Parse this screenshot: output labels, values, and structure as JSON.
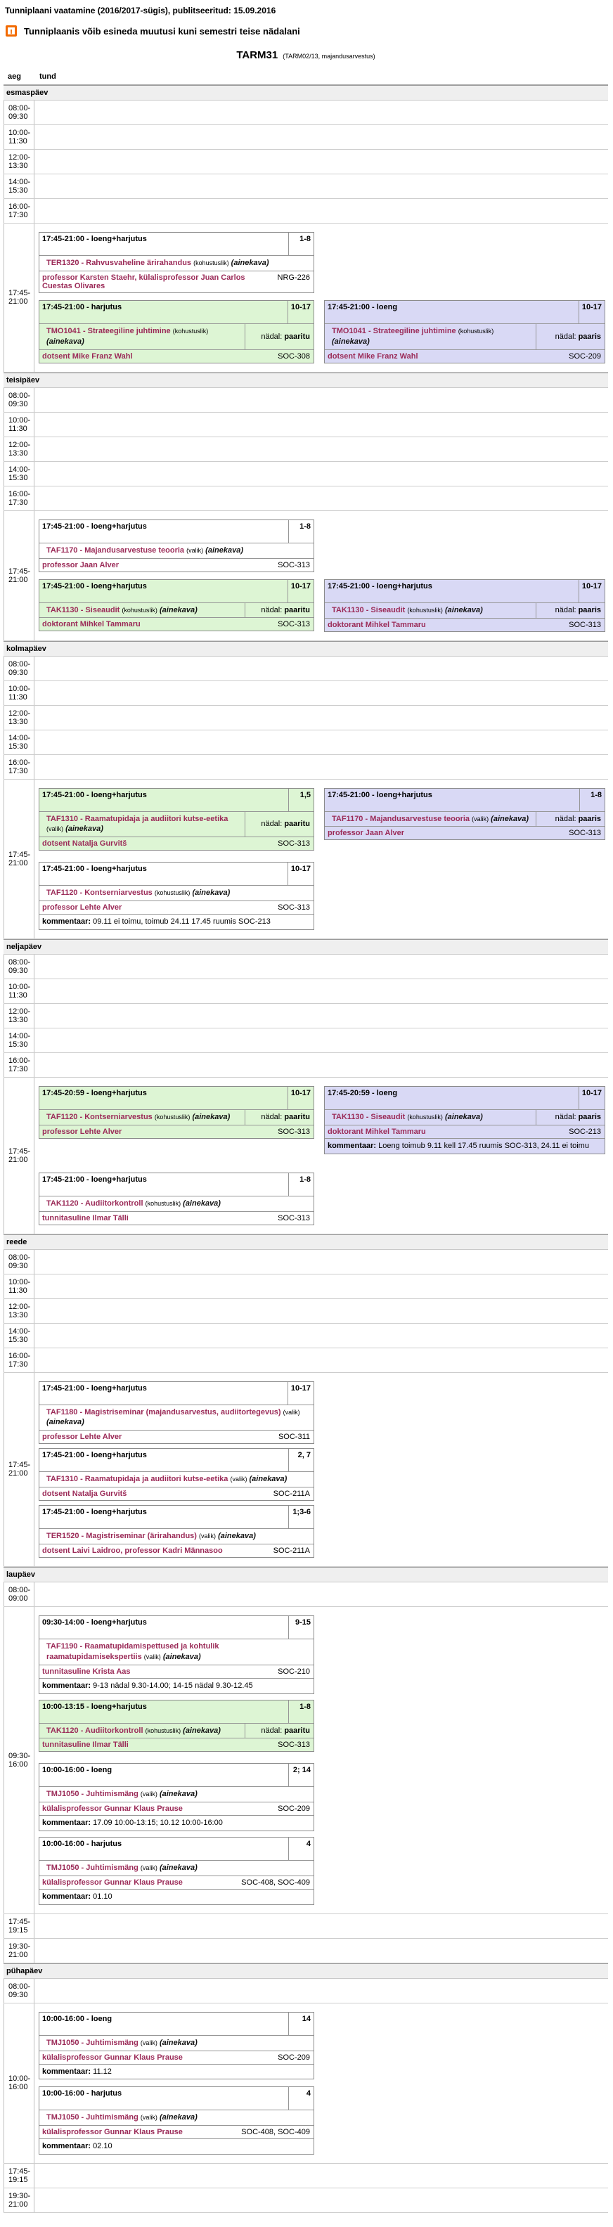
{
  "header": {
    "title": "Tunniplaani vaatamine (2016/2017-sügis), publitseeritud: 15.09.2016",
    "warning_icon": "exclamation-mark",
    "notice": "Tunniplaanis võib esineda muutusi kuni semestri teise nädalani",
    "group_code": "TARM31",
    "group_detail": "(TARM02/13, majandusarvestus)"
  },
  "table": {
    "col_headers": [
      "aeg",
      "tund"
    ],
    "labels": {
      "week_label": "nädal:",
      "comment_label": "kommentaar:",
      "ainekava": "(ainekava)"
    },
    "colors": {
      "odd_week_bg": "#ddf5d4",
      "even_week_bg": "#d9d9f5",
      "link": "#9b2b58",
      "warning": "#f26a00"
    },
    "days": [
      {
        "name": "esmaspäev",
        "rows": [
          {
            "time": "08:00-\n09:30"
          },
          {
            "time": "10:00-\n11:30"
          },
          {
            "time": "12:00-\n13:30"
          },
          {
            "time": "14:00-\n15:30"
          },
          {
            "time": "16:00-\n17:30"
          },
          {
            "time": "17:45-\n21:00",
            "columns": {
              "right_align_with": 1,
              "left": [
                {
                  "time": "17:45-21:00",
                  "type": "loeng+harjutus",
                  "weeks": "1-8",
                  "color": "white",
                  "course": "TER1320 - Rahvusvaheline ärirahandus",
                  "requirement": "(kohustuslik)",
                  "persons": "professor Karsten Staehr,  külalisprofessor Juan Carlos Cuestas Olivares",
                  "room": "NRG-226"
                },
                {
                  "time": "17:45-21:00",
                  "type": "harjutus",
                  "weeks": "10-17",
                  "color": "green",
                  "course": "TMO1041 - Strateegiline juhtimine",
                  "requirement": "(kohustuslik)",
                  "week_parity": "paaritu",
                  "persons": "dotsent Mike Franz Wahl",
                  "room": "SOC-308"
                }
              ],
              "right": [
                {
                  "time": "17:45-21:00",
                  "type": "loeng",
                  "weeks": "10-17",
                  "color": "purple",
                  "course": "TMO1041 - Strateegiline juhtimine",
                  "requirement": "(kohustuslik)",
                  "week_parity": "paaris",
                  "persons": "dotsent Mike Franz Wahl",
                  "room": "SOC-209"
                }
              ]
            }
          }
        ]
      },
      {
        "name": "teisipäev",
        "rows": [
          {
            "time": "08:00-\n09:30"
          },
          {
            "time": "10:00-\n11:30"
          },
          {
            "time": "12:00-\n13:30"
          },
          {
            "time": "14:00-\n15:30"
          },
          {
            "time": "16:00-\n17:30"
          },
          {
            "time": "17:45-\n21:00",
            "columns": {
              "right_align_with": 1,
              "left": [
                {
                  "time": "17:45-21:00",
                  "type": "loeng+harjutus",
                  "weeks": "1-8",
                  "color": "white",
                  "course": "TAF1170 - Majandusarvestuse teooria",
                  "requirement": "(valik)",
                  "persons": "professor Jaan Alver",
                  "room": "SOC-313"
                },
                {
                  "time": "17:45-21:00",
                  "type": "loeng+harjutus",
                  "weeks": "10-17",
                  "color": "green",
                  "course": "TAK1130 - Siseaudit",
                  "requirement": "(kohustuslik)",
                  "week_parity": "paaritu",
                  "persons": "doktorant Mihkel Tammaru",
                  "room": "SOC-313"
                }
              ],
              "right": [
                {
                  "time": "17:45-21:00",
                  "type": "loeng+harjutus",
                  "weeks": "10-17",
                  "color": "purple",
                  "course": "TAK1130 - Siseaudit",
                  "requirement": "(kohustuslik)",
                  "week_parity": "paaris",
                  "persons": "doktorant Mihkel Tammaru",
                  "room": "SOC-313"
                }
              ]
            }
          }
        ]
      },
      {
        "name": "kolmapäev",
        "rows": [
          {
            "time": "08:00-\n09:30"
          },
          {
            "time": "10:00-\n11:30"
          },
          {
            "time": "12:00-\n13:30"
          },
          {
            "time": "14:00-\n15:30"
          },
          {
            "time": "16:00-\n17:30"
          },
          {
            "time": "17:45-\n21:00",
            "columns": {
              "right_align_with": 0,
              "left": [
                {
                  "time": "17:45-21:00",
                  "type": "loeng+harjutus",
                  "weeks": "1,5",
                  "color": "green",
                  "course": "TAF1310 - Raamatupidaja ja audiitori kutse-eetika",
                  "requirement": "(valik)",
                  "week_parity": "paaritu",
                  "persons": "dotsent Natalja Gurvitš",
                  "room": "SOC-313"
                },
                {
                  "time": "17:45-21:00",
                  "type": "loeng+harjutus",
                  "weeks": "10-17",
                  "color": "white",
                  "gap_above": 16,
                  "course": "TAF1120 - Kontserniarvestus",
                  "requirement": "(kohustuslik)",
                  "persons": "professor Lehte Alver",
                  "room": "SOC-313",
                  "comment": "09.11 ei toimu, toimub 24.11 17.45 ruumis SOC-213"
                }
              ],
              "right": [
                {
                  "time": "17:45-21:00",
                  "type": "loeng+harjutus",
                  "weeks": "1-8",
                  "color": "purple",
                  "course": "TAF1170 - Majandusarvestuse teooria",
                  "requirement": "(valik)",
                  "week_parity": "paaris",
                  "persons": "professor Jaan Alver",
                  "room": "SOC-313"
                }
              ]
            }
          }
        ]
      },
      {
        "name": "neljapäev",
        "rows": [
          {
            "time": "08:00-\n09:30"
          },
          {
            "time": "10:00-\n11:30"
          },
          {
            "time": "12:00-\n13:30"
          },
          {
            "time": "14:00-\n15:30"
          },
          {
            "time": "16:00-\n17:30"
          },
          {
            "time": "17:45-\n21:00",
            "columns": {
              "right_align_with": 0,
              "left": [
                {
                  "time": "17:45-20:59",
                  "type": "loeng+harjutus",
                  "weeks": "10-17",
                  "color": "green",
                  "course": "TAF1120 - Kontserniarvestus",
                  "requirement": "(kohustuslik)",
                  "week_parity": "paaritu",
                  "persons": "professor Lehte Alver",
                  "room": "SOC-313"
                },
                {
                  "time": "17:45-21:00",
                  "type": "loeng+harjutus",
                  "weeks": "1-8",
                  "color": "white",
                  "gap_above": 48,
                  "course": "TAK1120 - Audiitorkontroll",
                  "requirement": "(kohustuslik)",
                  "persons": "tunnitasuline Ilmar Tälli",
                  "room": "SOC-313"
                }
              ],
              "right": [
                {
                  "time": "17:45-20:59",
                  "type": "loeng",
                  "weeks": "10-17",
                  "color": "purple",
                  "course": "TAK1130 - Siseaudit",
                  "requirement": "(kohustuslik)",
                  "week_parity": "paaris",
                  "persons": "doktorant Mihkel Tammaru",
                  "room": "SOC-213",
                  "comment": "Loeng toimub 9.11 kell 17.45 ruumis SOC-313, 24.11 ei toimu"
                }
              ]
            }
          }
        ]
      },
      {
        "name": "reede",
        "rows": [
          {
            "time": "08:00-\n09:30"
          },
          {
            "time": "10:00-\n11:30"
          },
          {
            "time": "12:00-\n13:30"
          },
          {
            "time": "14:00-\n15:30"
          },
          {
            "time": "16:00-\n17:30"
          },
          {
            "time": "17:45-\n21:00",
            "columns": {
              "left": [
                {
                  "time": "17:45-21:00",
                  "type": "loeng+harjutus",
                  "weeks": "10-17",
                  "color": "white",
                  "course": "TAF1180 - Magistriseminar (majandusarvestus, audiitortegevus)",
                  "requirement": "(valik)",
                  "persons": "professor Lehte Alver",
                  "room": "SOC-311"
                },
                {
                  "time": "17:45-21:00",
                  "type": "loeng+harjutus",
                  "weeks": "2, 7",
                  "color": "white",
                  "gap_above": 6,
                  "course": "TAF1310 - Raamatupidaja ja audiitori kutse-eetika",
                  "requirement": "(valik)",
                  "persons": "dotsent Natalja Gurvitš",
                  "room": "SOC-211A"
                },
                {
                  "time": "17:45-21:00",
                  "type": "loeng+harjutus",
                  "weeks": "1;3-6",
                  "color": "white",
                  "gap_above": 6,
                  "course": "TER1520 - Magistriseminar (ärirahandus)",
                  "requirement": "(valik)",
                  "persons": "dotsent Laivi Laidroo,  professor Kadri Männasoo",
                  "room": "SOC-211A"
                }
              ]
            }
          }
        ]
      },
      {
        "name": "laupäev",
        "rows": [
          {
            "time": "08:00-\n09:00"
          },
          {
            "time": "09:30-\n16:00",
            "columns": {
              "left": [
                {
                  "time": "09:30-14:00",
                  "type": "loeng+harjutus",
                  "weeks": "9-15",
                  "color": "white",
                  "course": "TAF1190 - Raamatupidamispettused ja kohtulik raamatupidamisekspertiis",
                  "requirement": "(valik)",
                  "persons": "tunnitasuline Krista Aas",
                  "room": "SOC-210",
                  "comment": "9-13 nädal 9.30-14.00; 14-15 nädal 9.30-12.45"
                },
                {
                  "time": "10:00-13:15",
                  "type": "loeng+harjutus",
                  "weeks": "1-8",
                  "color": "green",
                  "gap_above": 8,
                  "course": "TAK1120 - Audiitorkontroll",
                  "requirement": "(kohustuslik)",
                  "week_parity": "paaritu",
                  "persons": "tunnitasuline Ilmar Tälli",
                  "room": "SOC-313"
                },
                {
                  "time": "10:00-16:00",
                  "type": "loeng",
                  "weeks": "2; 14",
                  "color": "white",
                  "gap_above": 16,
                  "course": "TMJ1050 - Juhtimismäng",
                  "requirement": "(valik)",
                  "persons": "külalisprofessor Gunnar Klaus Prause",
                  "room": "SOC-209",
                  "comment": "17.09 10:00-13:15; 10.12 10:00-16:00"
                },
                {
                  "time": "10:00-16:00",
                  "type": "harjutus",
                  "weeks": "4",
                  "color": "white",
                  "gap_above": 8,
                  "course": "TMJ1050 - Juhtimismäng",
                  "requirement": "(valik)",
                  "persons": "külalisprofessor Gunnar Klaus Prause",
                  "room": "SOC-408,  SOC-409",
                  "comment": "01.10"
                }
              ]
            }
          },
          {
            "time": "17:45-\n19:15"
          },
          {
            "time": "19:30-\n21:00"
          }
        ]
      },
      {
        "name": "pühapäev",
        "rows": [
          {
            "time": "08:00-\n09:30"
          },
          {
            "time": "10:00-\n16:00",
            "columns": {
              "left": [
                {
                  "time": "10:00-16:00",
                  "type": "loeng",
                  "weeks": "14",
                  "color": "white",
                  "course": "TMJ1050 - Juhtimismäng",
                  "requirement": "(valik)",
                  "persons": "külalisprofessor Gunnar Klaus Prause",
                  "room": "SOC-209",
                  "comment": "11.12"
                },
                {
                  "time": "10:00-16:00",
                  "type": "harjutus",
                  "weeks": "4",
                  "color": "white",
                  "gap_above": 10,
                  "course": "TMJ1050 - Juhtimismäng",
                  "requirement": "(valik)",
                  "persons": "külalisprofessor Gunnar Klaus Prause",
                  "room": "SOC-408,  SOC-409",
                  "comment": "02.10"
                }
              ]
            }
          },
          {
            "time": "17:45-\n19:15"
          },
          {
            "time": "19:30-\n21:00"
          }
        ]
      }
    ]
  }
}
